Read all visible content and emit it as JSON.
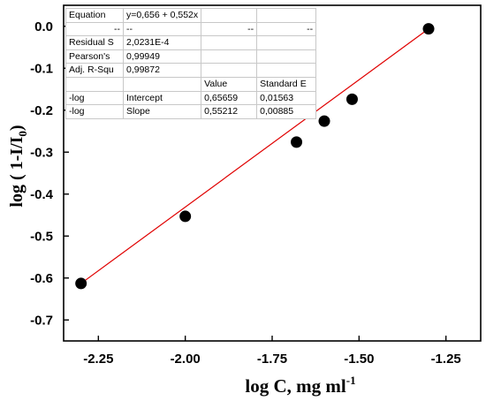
{
  "chart_data": {
    "type": "scatter",
    "xlabel": "log C, mg ml",
    "xlabel_sup": "-1",
    "ylabel": "log ( 1-I/I",
    "ylabel_sub": "0",
    "ylabel_close": ")",
    "xlim": [
      -2.35,
      -1.15
    ],
    "ylim": [
      -0.75,
      0.05
    ],
    "x_reversed": true,
    "x_ticks": [
      -2.25,
      -2.0,
      -1.75,
      -1.5,
      -1.25
    ],
    "x_tick_labels": [
      "-2.25",
      "-2.00",
      "-1.75",
      "-1.50",
      "-1.25"
    ],
    "y_ticks": [
      0.0,
      -0.1,
      -0.2,
      -0.3,
      -0.4,
      -0.5,
      -0.6,
      -0.7
    ],
    "y_tick_labels": [
      "0.0",
      "-0.1",
      "-0.2",
      "-0.3",
      "-0.4",
      "-0.5",
      "-0.6",
      "-0.7"
    ],
    "grid": false,
    "series": [
      {
        "points": [
          {
            "x": -2.3,
            "y": -0.613
          },
          {
            "x": -2.0,
            "y": -0.453
          },
          {
            "x": -1.68,
            "y": -0.276
          },
          {
            "x": -1.6,
            "y": -0.226
          },
          {
            "x": -1.52,
            "y": -0.174
          },
          {
            "x": -1.3,
            "y": -0.006
          }
        ],
        "color": "#000000"
      }
    ],
    "fit_line": {
      "intercept": 0.656,
      "slope": 0.552,
      "color": "#e00000"
    },
    "stats_table": [
      [
        "Equation",
        "y=0,656 + 0,552x",
        "",
        ""
      ],
      [
        "--",
        "--",
        "--",
        "--"
      ],
      [
        "Residual S",
        "2,0231E-4",
        "",
        ""
      ],
      [
        "Pearson's",
        "0,99949",
        "",
        ""
      ],
      [
        "Adj. R-Squ",
        "0,99872",
        "",
        ""
      ],
      [
        "",
        "",
        "Value",
        "Standard E"
      ],
      [
        "-log",
        "Intercept",
        "0,65659",
        "0,01563"
      ],
      [
        "-log",
        "Slope",
        "0,55212",
        "0,00885"
      ]
    ]
  }
}
